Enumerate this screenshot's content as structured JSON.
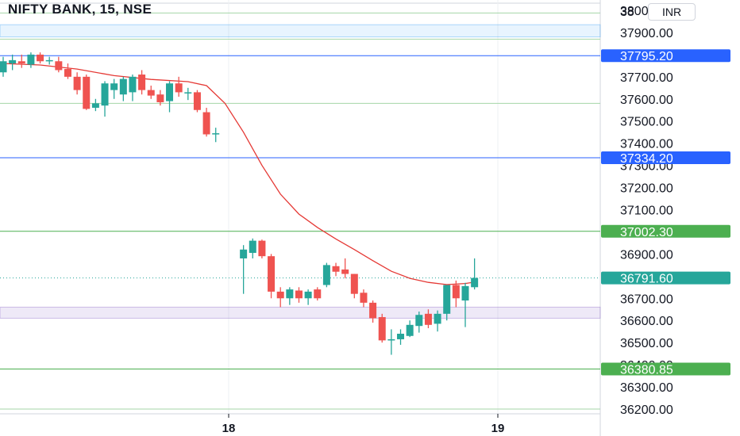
{
  "header": {
    "title": "NIFTY BANK, 15, NSE",
    "currency": "INR"
  },
  "colors": {
    "up": "#26a69a",
    "down": "#ef5350",
    "ma": "#e53935",
    "blue_line": "#2962ff",
    "green_line": "#4caf50",
    "last_price": "#26a69a"
  },
  "chart_data": {
    "type": "candlestick",
    "title": "NIFTY BANK, 15, NSE",
    "ylim": [
      36180,
      38145
    ],
    "y_ticks": [
      "38000.00",
      "37900.00",
      "37800.00",
      "37700.00",
      "37600.00",
      "37500.00",
      "37400.00",
      "37300.00",
      "37200.00",
      "37100.00",
      "37000.00",
      "36900.00",
      "36800.00",
      "36700.00",
      "36600.00",
      "36500.00",
      "36400.00",
      "36300.00",
      "36200.00"
    ],
    "top_partial_tick": "38",
    "x_ticks": [
      "18",
      "19"
    ],
    "grid": true,
    "price_tags": [
      {
        "value": 37795.2,
        "label": "37795.20",
        "kind": "blue"
      },
      {
        "value": 37334.2,
        "label": "37334.20",
        "kind": "blue"
      },
      {
        "value": 37002.3,
        "label": "37002.30",
        "kind": "green"
      },
      {
        "value": 36791.6,
        "label": "36791.60",
        "kind": "last"
      },
      {
        "value": 36380.85,
        "label": "36380.85",
        "kind": "green"
      }
    ],
    "zones": [
      {
        "from": 37880,
        "to": 37935,
        "kind": "blue"
      },
      {
        "from": 36610,
        "to": 36660,
        "kind": "purple"
      }
    ],
    "thin_levels": [
      37988,
      37870,
      37580,
      36200
    ],
    "candles": [
      {
        "i": 0,
        "o": 37720,
        "h": 37790,
        "l": 37700,
        "c": 37770
      },
      {
        "i": 1,
        "o": 37760,
        "h": 37800,
        "l": 37730,
        "c": 37775
      },
      {
        "i": 2,
        "o": 37770,
        "h": 37800,
        "l": 37740,
        "c": 37760
      },
      {
        "i": 3,
        "o": 37755,
        "h": 37810,
        "l": 37740,
        "c": 37800
      },
      {
        "i": 4,
        "o": 37800,
        "h": 37810,
        "l": 37760,
        "c": 37770
      },
      {
        "i": 5,
        "o": 37770,
        "h": 37790,
        "l": 37755,
        "c": 37775
      },
      {
        "i": 6,
        "o": 37770,
        "h": 37790,
        "l": 37720,
        "c": 37730
      },
      {
        "i": 7,
        "o": 37735,
        "h": 37760,
        "l": 37690,
        "c": 37700
      },
      {
        "i": 8,
        "o": 37700,
        "h": 37720,
        "l": 37620,
        "c": 37640
      },
      {
        "i": 9,
        "o": 37700,
        "h": 37710,
        "l": 37550,
        "c": 37555
      },
      {
        "i": 10,
        "o": 37560,
        "h": 37600,
        "l": 37545,
        "c": 37580
      },
      {
        "i": 11,
        "o": 37570,
        "h": 37680,
        "l": 37520,
        "c": 37670
      },
      {
        "i": 12,
        "o": 37640,
        "h": 37690,
        "l": 37600,
        "c": 37670
      },
      {
        "i": 13,
        "o": 37620,
        "h": 37700,
        "l": 37590,
        "c": 37690
      },
      {
        "i": 14,
        "o": 37630,
        "h": 37710,
        "l": 37590,
        "c": 37700
      },
      {
        "i": 15,
        "o": 37710,
        "h": 37730,
        "l": 37620,
        "c": 37640
      },
      {
        "i": 16,
        "o": 37640,
        "h": 37660,
        "l": 37600,
        "c": 37615
      },
      {
        "i": 17,
        "o": 37620,
        "h": 37640,
        "l": 37570,
        "c": 37585
      },
      {
        "i": 18,
        "o": 37590,
        "h": 37680,
        "l": 37540,
        "c": 37670
      },
      {
        "i": 19,
        "o": 37670,
        "h": 37700,
        "l": 37610,
        "c": 37630
      },
      {
        "i": 20,
        "o": 37625,
        "h": 37650,
        "l": 37595,
        "c": 37630
      },
      {
        "i": 21,
        "o": 37630,
        "h": 37640,
        "l": 37540,
        "c": 37550
      },
      {
        "i": 22,
        "o": 37540,
        "h": 37560,
        "l": 37430,
        "c": 37440
      },
      {
        "i": 23,
        "o": 37445,
        "h": 37470,
        "l": 37405,
        "c": 37445
      },
      {
        "i": 26,
        "o": 36880,
        "h": 36940,
        "l": 36720,
        "c": 36920
      },
      {
        "i": 27,
        "o": 36905,
        "h": 36970,
        "l": 36880,
        "c": 36960
      },
      {
        "i": 28,
        "o": 36960,
        "h": 36965,
        "l": 36880,
        "c": 36890
      },
      {
        "i": 29,
        "o": 36890,
        "h": 36900,
        "l": 36700,
        "c": 36730
      },
      {
        "i": 30,
        "o": 36730,
        "h": 36750,
        "l": 36660,
        "c": 36700
      },
      {
        "i": 31,
        "o": 36700,
        "h": 36750,
        "l": 36670,
        "c": 36740
      },
      {
        "i": 32,
        "o": 36735,
        "h": 36750,
        "l": 36680,
        "c": 36700
      },
      {
        "i": 33,
        "o": 36700,
        "h": 36740,
        "l": 36670,
        "c": 36730
      },
      {
        "i": 34,
        "o": 36740,
        "h": 36750,
        "l": 36690,
        "c": 36700
      },
      {
        "i": 35,
        "o": 36760,
        "h": 36860,
        "l": 36750,
        "c": 36850
      },
      {
        "i": 36,
        "o": 36845,
        "h": 36860,
        "l": 36800,
        "c": 36820
      },
      {
        "i": 37,
        "o": 36830,
        "h": 36880,
        "l": 36790,
        "c": 36810
      },
      {
        "i": 38,
        "o": 36810,
        "h": 36810,
        "l": 36700,
        "c": 36720
      },
      {
        "i": 39,
        "o": 36725,
        "h": 36740,
        "l": 36660,
        "c": 36680
      },
      {
        "i": 40,
        "o": 36680,
        "h": 36690,
        "l": 36590,
        "c": 36610
      },
      {
        "i": 41,
        "o": 36615,
        "h": 36630,
        "l": 36500,
        "c": 36510
      },
      {
        "i": 42,
        "o": 36510,
        "h": 36560,
        "l": 36445,
        "c": 36515
      },
      {
        "i": 43,
        "o": 36515,
        "h": 36560,
        "l": 36490,
        "c": 36540
      },
      {
        "i": 44,
        "o": 36530,
        "h": 36600,
        "l": 36525,
        "c": 36580
      },
      {
        "i": 45,
        "o": 36575,
        "h": 36640,
        "l": 36545,
        "c": 36625
      },
      {
        "i": 46,
        "o": 36630,
        "h": 36650,
        "l": 36565,
        "c": 36580
      },
      {
        "i": 47,
        "o": 36585,
        "h": 36645,
        "l": 36550,
        "c": 36630
      },
      {
        "i": 48,
        "o": 36630,
        "h": 36760,
        "l": 36600,
        "c": 36760
      },
      {
        "i": 49,
        "o": 36760,
        "h": 36780,
        "l": 36660,
        "c": 36700
      },
      {
        "i": 50,
        "o": 36690,
        "h": 36770,
        "l": 36570,
        "c": 36755
      },
      {
        "i": 51,
        "o": 36750,
        "h": 36880,
        "l": 36740,
        "c": 36792
      }
    ],
    "moving_average": [
      {
        "i": 0,
        "v": 37760
      },
      {
        "i": 4,
        "v": 37753
      },
      {
        "i": 8,
        "v": 37735
      },
      {
        "i": 12,
        "v": 37705
      },
      {
        "i": 16,
        "v": 37688
      },
      {
        "i": 20,
        "v": 37678
      },
      {
        "i": 22,
        "v": 37660
      },
      {
        "i": 24,
        "v": 37580
      },
      {
        "i": 26,
        "v": 37450
      },
      {
        "i": 28,
        "v": 37300
      },
      {
        "i": 30,
        "v": 37170
      },
      {
        "i": 32,
        "v": 37080
      },
      {
        "i": 34,
        "v": 37020
      },
      {
        "i": 36,
        "v": 36968
      },
      {
        "i": 38,
        "v": 36920
      },
      {
        "i": 40,
        "v": 36870
      },
      {
        "i": 42,
        "v": 36822
      },
      {
        "i": 44,
        "v": 36790
      },
      {
        "i": 46,
        "v": 36772
      },
      {
        "i": 48,
        "v": 36762
      },
      {
        "i": 50,
        "v": 36767
      },
      {
        "i": 51,
        "v": 36773
      }
    ]
  }
}
